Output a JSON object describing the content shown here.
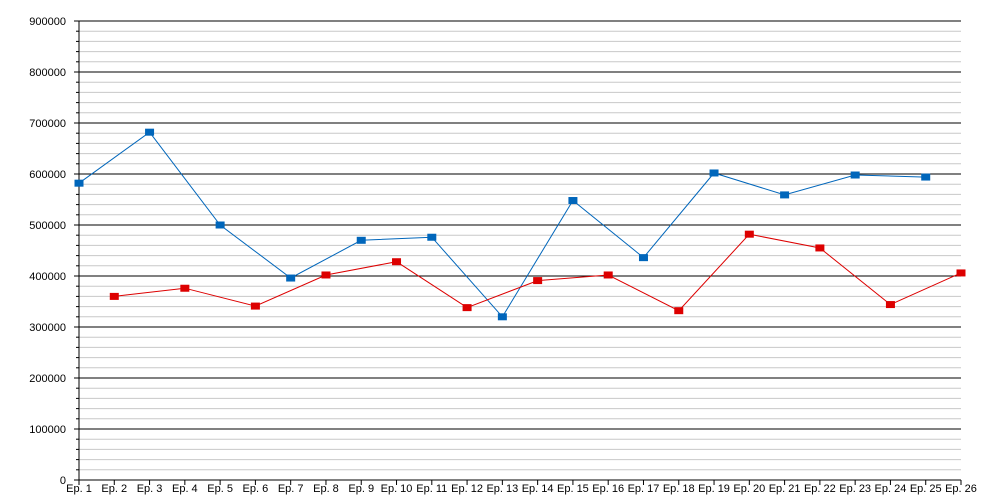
{
  "chart_data": {
    "type": "line",
    "title": "",
    "xlabel": "",
    "ylabel": "",
    "ylim": [
      0,
      900000
    ],
    "y_ticks": [
      "0",
      "100000",
      "200000",
      "300000",
      "400000",
      "500000",
      "600000",
      "700000",
      "800000",
      "900000"
    ],
    "categories": [
      "Ep. 1",
      "Ep. 2",
      "Ep. 3",
      "Ep. 4",
      "Ep. 5",
      "Ep. 6",
      "Ep. 7",
      "Ep. 8",
      "Ep. 9",
      "Ep. 10",
      "Ep. 11",
      "Ep. 12",
      "Ep. 13",
      "Ep. 14",
      "Ep. 15",
      "Ep. 16",
      "Ep. 17",
      "Ep. 18",
      "Ep. 19",
      "Ep. 20",
      "Ep. 21",
      "Ep. 22",
      "Ep. 23",
      "Ep. 24",
      "Ep. 25",
      "Ep. 26"
    ],
    "grid": true,
    "legend": "none",
    "series": [
      {
        "color": "#0066bb",
        "values": [
          582000,
          null,
          682000,
          null,
          500000,
          null,
          396000,
          null,
          470000,
          null,
          476000,
          null,
          320000,
          null,
          548000,
          null,
          436000,
          null,
          602000,
          null,
          559000,
          null,
          598000,
          null,
          594000,
          null
        ]
      },
      {
        "color": "#dd0000",
        "values": [
          null,
          360000,
          null,
          376000,
          null,
          341000,
          null,
          402000,
          null,
          428000,
          null,
          338000,
          null,
          391000,
          null,
          402000,
          null,
          332000,
          null,
          482000,
          null,
          455000,
          null,
          344000,
          null,
          406000
        ]
      }
    ]
  }
}
